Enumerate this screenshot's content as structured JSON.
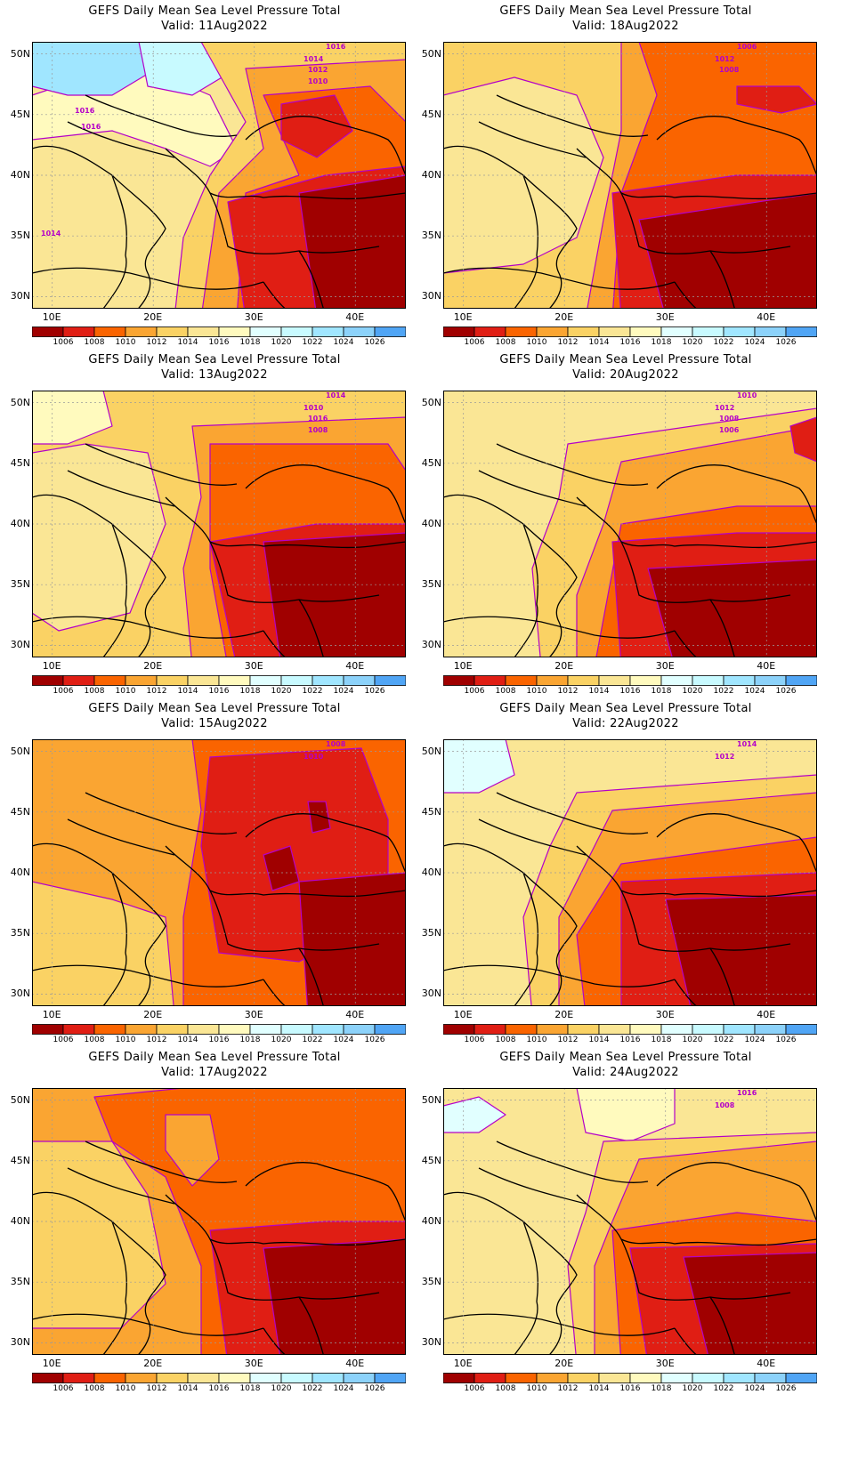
{
  "palette": [
    "#a00000",
    "#e01e14",
    "#fa6400",
    "#faa532",
    "#fad264",
    "#fae695",
    "#fffabe",
    "#e1ffff",
    "#c8faff",
    "#a0e6ff",
    "#8cd2fa",
    "#50a5f5",
    "#2a78e6"
  ],
  "legend_levels": [
    "1006",
    "1008",
    "1010",
    "1012",
    "1014",
    "1016",
    "1018",
    "1020",
    "1022",
    "1024",
    "1026"
  ],
  "lat_labels": [
    "50N",
    "45N",
    "40N",
    "35N",
    "30N"
  ],
  "lon_labels": [
    "10E",
    "20E",
    "30E",
    "40E"
  ],
  "lat_values": [
    50,
    45,
    40,
    35,
    30
  ],
  "lon_values": [
    10,
    20,
    30,
    40
  ],
  "panels": [
    {
      "title": "GEFS Daily Mean Sea Level Pressure Total",
      "valid": "Valid:  11Aug2022",
      "contour_labels": [
        "1016",
        "1014",
        "1012",
        "1010",
        "1016",
        "1016",
        "1014"
      ]
    },
    {
      "title": "GEFS Daily Mean Sea Level Pressure Total",
      "valid": "Valid:  18Aug2022",
      "contour_labels": [
        "1006",
        "1012",
        "1008"
      ]
    },
    {
      "title": "GEFS Daily Mean Sea Level Pressure Total",
      "valid": "Valid:  13Aug2022",
      "contour_labels": [
        "1014",
        "1010",
        "1016",
        "1008"
      ]
    },
    {
      "title": "GEFS Daily Mean Sea Level Pressure Total",
      "valid": "Valid:  20Aug2022",
      "contour_labels": [
        "1010",
        "1012",
        "1008",
        "1006"
      ]
    },
    {
      "title": "GEFS Daily Mean Sea Level Pressure Total",
      "valid": "Valid:  15Aug2022",
      "contour_labels": [
        "1008",
        "1010"
      ]
    },
    {
      "title": "GEFS Daily Mean Sea Level Pressure Total",
      "valid": "Valid:  22Aug2022",
      "contour_labels": [
        "1014",
        "1012"
      ]
    },
    {
      "title": "GEFS Daily Mean Sea Level Pressure Total",
      "valid": "Valid:  17Aug2022",
      "contour_labels": []
    },
    {
      "title": "GEFS Daily Mean Sea Level Pressure Total",
      "valid": "Valid:  24Aug2022",
      "contour_labels": [
        "1016",
        "1008"
      ]
    }
  ]
}
